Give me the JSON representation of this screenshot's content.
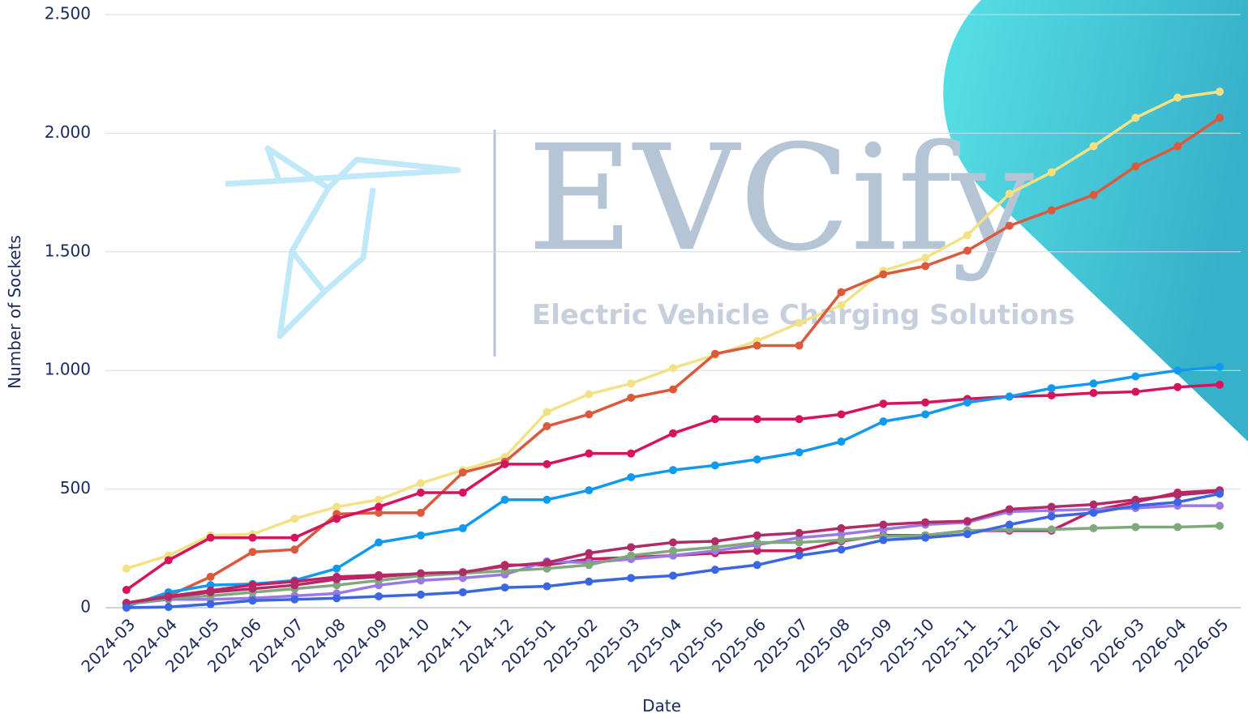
{
  "chart_data": {
    "type": "line",
    "watermark": {
      "title": "EVCify",
      "subtitle": "Electric Vehicle Charging Solutions"
    },
    "x_label": "Date",
    "y_label": "Number of Sockets",
    "categories": [
      "2024-03",
      "2024-04",
      "2024-05",
      "2024-06",
      "2024-07",
      "2024-08",
      "2024-09",
      "2024-10",
      "2024-11",
      "2024-12",
      "2025-01",
      "2025-02",
      "2025-03",
      "2025-04",
      "2025-05",
      "2025-06",
      "2025-07",
      "2025-08",
      "2025-09",
      "2025-10",
      "2025-11",
      "2025-12",
      "2026-01",
      "2026-02",
      "2026-03",
      "2026-04",
      "2026-05"
    ],
    "ylim": [
      0,
      2500
    ],
    "yticks": [
      0,
      500,
      {
        "value": 1000,
        "label": "1.000"
      },
      {
        "value": 1500,
        "label": "1.500"
      },
      {
        "value": 2000,
        "label": "2.000"
      },
      {
        "value": 2500,
        "label": "2.500"
      }
    ],
    "grid": true,
    "series": [
      {
        "color": "#f2e285",
        "values": [
          165,
          220,
          305,
          310,
          375,
          425,
          455,
          525,
          580,
          635,
          825,
          900,
          945,
          1010,
          1065,
          1125,
          1200,
          1275,
          1420,
          1475,
          1570,
          1745,
          1835,
          1945,
          2065,
          2150,
          2175
        ]
      },
      {
        "color": "#db5a3e",
        "values": [
          20,
          50,
          130,
          235,
          245,
          395,
          400,
          400,
          570,
          615,
          765,
          815,
          885,
          920,
          1070,
          1105,
          1105,
          1330,
          1405,
          1440,
          1505,
          1610,
          1675,
          1740,
          1860,
          1945,
          2065
        ]
      },
      {
        "color": "#d6145e",
        "values": [
          75,
          200,
          295,
          295,
          295,
          375,
          425,
          485,
          485,
          605,
          605,
          650,
          650,
          735,
          795,
          795,
          795,
          815,
          860,
          865,
          880,
          890,
          895,
          905,
          910,
          930,
          940
        ]
      },
      {
        "color": "#0f9af0",
        "values": [
          5,
          65,
          95,
          100,
          115,
          165,
          275,
          305,
          335,
          455,
          455,
          495,
          550,
          580,
          600,
          625,
          655,
          700,
          785,
          815,
          865,
          890,
          925,
          945,
          975,
          1000,
          1015
        ]
      },
      {
        "color": "#c4205f",
        "values": [
          20,
          48,
          72,
          96,
          110,
          130,
          137,
          143,
          147,
          180,
          180,
          205,
          212,
          220,
          230,
          240,
          240,
          280,
          305,
          305,
          325,
          325,
          325,
          410,
          445,
          485,
          495
        ]
      },
      {
        "color": "#9a78e6",
        "values": [
          15,
          35,
          35,
          40,
          50,
          60,
          95,
          115,
          125,
          140,
          195,
          190,
          205,
          220,
          240,
          265,
          295,
          310,
          330,
          350,
          360,
          405,
          410,
          415,
          420,
          430,
          430
        ]
      },
      {
        "color": "#7fa87c",
        "values": [
          15,
          40,
          50,
          65,
          80,
          95,
          115,
          135,
          145,
          155,
          165,
          180,
          220,
          240,
          255,
          275,
          275,
          285,
          300,
          305,
          325,
          330,
          330,
          335,
          340,
          340,
          345
        ]
      },
      {
        "color": "#b02b68",
        "values": [
          20,
          45,
          65,
          80,
          95,
          120,
          130,
          145,
          150,
          175,
          190,
          230,
          255,
          275,
          280,
          305,
          315,
          335,
          350,
          360,
          365,
          415,
          425,
          435,
          455,
          475,
          490
        ]
      },
      {
        "color": "#3a66e4",
        "values": [
          0,
          3,
          15,
          30,
          35,
          40,
          48,
          55,
          65,
          85,
          90,
          110,
          125,
          135,
          160,
          180,
          220,
          245,
          285,
          295,
          310,
          350,
          385,
          400,
          430,
          445,
          480
        ]
      }
    ]
  }
}
